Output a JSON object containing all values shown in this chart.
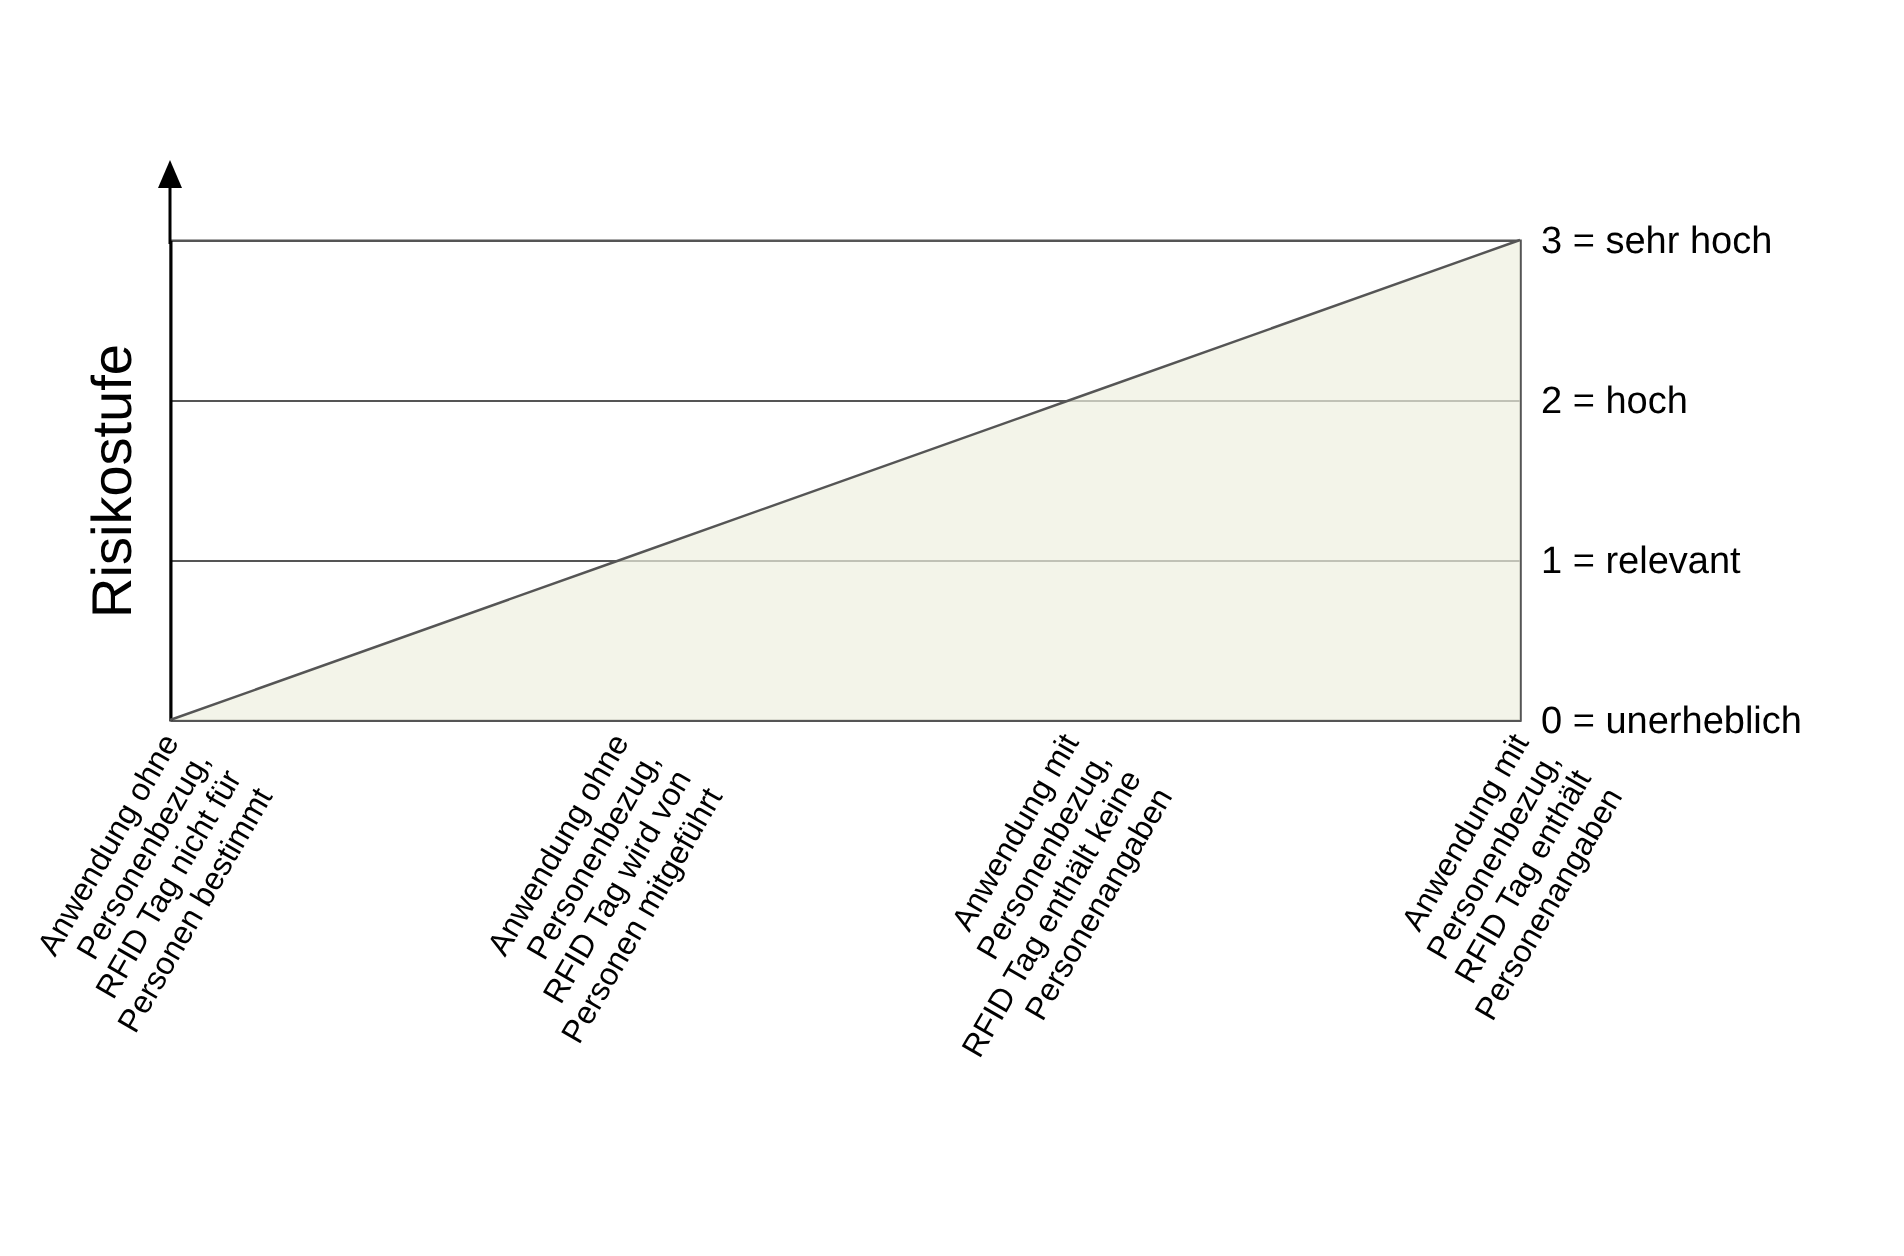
{
  "chart_data": {
    "type": "area",
    "ylabel": "Risikostufe",
    "categories": [
      "Anwendung ohne\nPersonenbezug,\nRFID Tag nicht für\nPersonen bestimmt",
      "Anwendung ohne\nPersonenbezug,\nRFID Tag wird von\nPersonen mitgeführt",
      "Anwendung mit\nPersonenbezug,\nRFID Tag enthält keine\nPersonenangaben",
      "Anwendung mit\nPersonenbezug,\nRFID Tag enthält\nPersonenangaben"
    ],
    "values": [
      0,
      1,
      2,
      3
    ],
    "color": "#eef0e0",
    "ylim": [
      0,
      3
    ],
    "yticks": [
      {
        "value": 0,
        "label": "0 = unerheblich"
      },
      {
        "value": 1,
        "label": "1 = relevant"
      },
      {
        "value": 2,
        "label": "2 = hoch"
      },
      {
        "value": 3,
        "label": "3 = sehr hoch"
      }
    ],
    "grid": "y"
  }
}
